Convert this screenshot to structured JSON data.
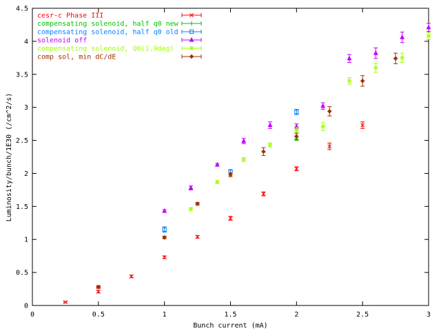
{
  "chart_data": {
    "type": "scatter",
    "title": "",
    "xlabel": "Bunch current (mA)",
    "ylabel": "Luminosity/bunch/1E30 (/cm^2/s)",
    "xlim": [
      0,
      3
    ],
    "ylim": [
      0,
      4.5
    ],
    "xticks": [
      0,
      0.5,
      1,
      1.5,
      2,
      2.5,
      3
    ],
    "yticks": [
      0,
      0.5,
      1,
      1.5,
      2,
      2.5,
      3,
      3.5,
      4,
      4.5
    ],
    "xtick_labels": [
      "0",
      "0.5",
      "1",
      "1.5",
      "2",
      "2.5",
      "3"
    ],
    "ytick_labels": [
      "0",
      "0.5",
      "1",
      "1.5",
      "2",
      "2.5",
      "3",
      "3.5",
      "4",
      "4.5"
    ],
    "grid": false,
    "legend_position": "top-left",
    "error_bars": true,
    "series": [
      {
        "name": "cesr-c Phase III",
        "color": "#ff0000",
        "marker": "x",
        "x": [
          0.25,
          0.5,
          0.5,
          0.75,
          1.0,
          1.25,
          1.5,
          1.75,
          2.0,
          2.25,
          2.5
        ],
        "y": [
          0.05,
          0.21,
          0.28,
          0.44,
          0.73,
          1.04,
          1.32,
          1.69,
          2.07,
          2.41,
          2.73
        ],
        "err": [
          0.01,
          0.02,
          0.02,
          0.02,
          0.02,
          0.02,
          0.03,
          0.03,
          0.03,
          0.05,
          0.05
        ]
      },
      {
        "name": "compensating solenoid, half q0 new",
        "color": "#00c000",
        "marker": "plus",
        "x": [
          2.0
        ],
        "y": [
          2.53
        ],
        "err": [
          0.03
        ]
      },
      {
        "name": "compensating solenoid, half q0 old",
        "color": "#0080ff",
        "marker": "square",
        "x": [
          1.0,
          1.5,
          2.0
        ],
        "y": [
          1.15,
          2.03,
          2.93
        ],
        "err": [
          0.04,
          0.02,
          0.04
        ]
      },
      {
        "name": "solenoid off",
        "color": "#c000ff",
        "marker": "triangle",
        "x": [
          1.0,
          1.2,
          1.4,
          1.6,
          1.8,
          2.0,
          2.2,
          2.4,
          2.6,
          2.8,
          3.0
        ],
        "y": [
          1.43,
          1.78,
          2.13,
          2.49,
          2.73,
          2.71,
          3.02,
          3.74,
          3.82,
          4.06,
          4.21
        ],
        "err": [
          0.02,
          0.03,
          0.02,
          0.04,
          0.05,
          0.04,
          0.05,
          0.06,
          0.08,
          0.08,
          0.06
        ]
      },
      {
        "name": "compensating solenoid, Q0(1.9deg)",
        "color": "#a0ff00",
        "marker": "star",
        "x": [
          1.2,
          1.4,
          1.6,
          1.8,
          2.0,
          2.2,
          2.4,
          2.6,
          2.8,
          3.0
        ],
        "y": [
          1.46,
          1.87,
          2.21,
          2.43,
          2.65,
          2.71,
          3.4,
          3.6,
          3.75,
          4.08
        ],
        "err": [
          0.02,
          0.02,
          0.03,
          0.03,
          0.05,
          0.06,
          0.05,
          0.07,
          0.07,
          0.05
        ]
      },
      {
        "name": "comp sol, min dC/dE",
        "color": "#a03000",
        "marker": "diamond",
        "x": [
          0.5,
          1.0,
          1.25,
          1.5,
          1.75,
          2.0,
          2.25,
          2.5,
          2.75
        ],
        "y": [
          0.28,
          1.03,
          1.54,
          1.98,
          2.33,
          2.56,
          2.94,
          3.4,
          3.74
        ],
        "err": [
          0.01,
          0.02,
          0.02,
          0.03,
          0.06,
          0.05,
          0.07,
          0.08,
          0.08
        ]
      }
    ]
  }
}
